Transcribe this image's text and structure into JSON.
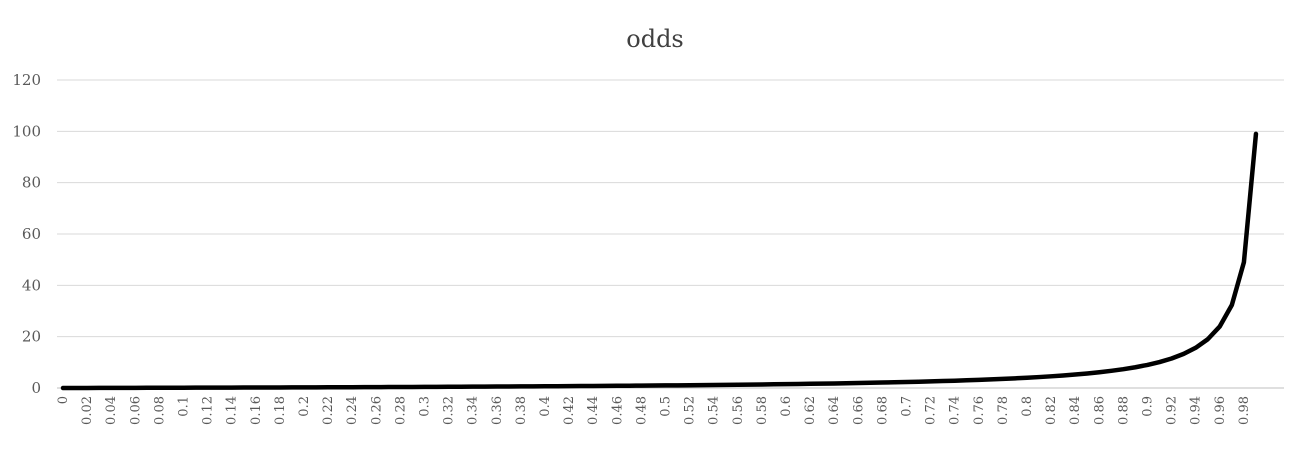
{
  "chart_data": {
    "type": "line",
    "title": "odds",
    "xlabel": "",
    "ylabel": "",
    "ylim": [
      0,
      120
    ],
    "yticks": [
      "0",
      "20",
      "40",
      "60",
      "80",
      "100",
      "120"
    ],
    "grid": true,
    "legend": "none",
    "line_color": "#000000",
    "x": [
      0,
      0.01,
      0.02,
      0.03,
      0.04,
      0.05,
      0.06,
      0.07,
      0.08,
      0.09,
      0.1,
      0.11,
      0.12,
      0.13,
      0.14,
      0.15,
      0.16,
      0.17,
      0.18,
      0.19,
      0.2,
      0.21,
      0.22,
      0.23,
      0.24,
      0.25,
      0.26,
      0.27,
      0.28,
      0.29,
      0.3,
      0.31,
      0.32,
      0.33,
      0.34,
      0.35,
      0.36,
      0.37,
      0.38,
      0.39,
      0.4,
      0.41,
      0.42,
      0.43,
      0.44,
      0.45,
      0.46,
      0.47,
      0.48,
      0.49,
      0.5,
      0.51,
      0.52,
      0.53,
      0.54,
      0.55,
      0.56,
      0.57,
      0.58,
      0.59,
      0.6,
      0.61,
      0.62,
      0.63,
      0.64,
      0.65,
      0.66,
      0.67,
      0.68,
      0.69,
      0.7,
      0.71,
      0.72,
      0.73,
      0.74,
      0.75,
      0.76,
      0.77,
      0.78,
      0.79,
      0.8,
      0.81,
      0.82,
      0.83,
      0.84,
      0.85,
      0.86,
      0.87,
      0.88,
      0.89,
      0.9,
      0.91,
      0.92,
      0.93,
      0.94,
      0.95,
      0.96,
      0.97,
      0.98,
      0.99
    ],
    "xtick_labels": [
      "0",
      "0.02",
      "0.04",
      "0.06",
      "0.08",
      "0.1",
      "0.12",
      "0.14",
      "0.16",
      "0.18",
      "0.2",
      "0.22",
      "0.24",
      "0.26",
      "0.28",
      "0.3",
      "0.32",
      "0.34",
      "0.36",
      "0.38",
      "0.4",
      "0.42",
      "0.44",
      "0.46",
      "0.48",
      "0.5",
      "0.52",
      "0.54",
      "0.56",
      "0.58",
      "0.6",
      "0.62",
      "0.64",
      "0.66",
      "0.68",
      "0.7",
      "0.72",
      "0.74",
      "0.76",
      "0.78",
      "0.8",
      "0.82",
      "0.84",
      "0.86",
      "0.88",
      "0.9",
      "0.92",
      "0.94",
      "0.96",
      "0.98"
    ],
    "series": [
      {
        "values": [
          0,
          0.0101,
          0.0204,
          0.0309,
          0.0417,
          0.0526,
          0.0638,
          0.0753,
          0.087,
          0.0989,
          0.1111,
          0.1236,
          0.1364,
          0.1494,
          0.1628,
          0.1765,
          0.1905,
          0.2048,
          0.2195,
          0.2346,
          0.25,
          0.2658,
          0.2821,
          0.2987,
          0.3158,
          0.3333,
          0.3514,
          0.3699,
          0.3889,
          0.4085,
          0.4286,
          0.4493,
          0.4706,
          0.4925,
          0.5152,
          0.5385,
          0.5625,
          0.5873,
          0.6129,
          0.6393,
          0.6667,
          0.6949,
          0.7241,
          0.7544,
          0.7857,
          0.8182,
          0.8519,
          0.8868,
          0.9231,
          0.9608,
          1,
          1.0408,
          1.0833,
          1.1277,
          1.1739,
          1.2222,
          1.2727,
          1.3256,
          1.381,
          1.439,
          1.5,
          1.5641,
          1.6316,
          1.7027,
          1.7778,
          1.8571,
          1.9412,
          2.0303,
          2.125,
          2.2258,
          2.3333,
          2.4483,
          2.5714,
          2.7037,
          2.8462,
          3,
          3.1667,
          3.3478,
          3.5455,
          3.7619,
          4,
          4.2632,
          4.5556,
          4.8824,
          5.25,
          5.6667,
          6.1429,
          6.6923,
          7.3333,
          8.0909,
          9,
          10.1111,
          11.5,
          13.2857,
          15.6667,
          19,
          24,
          32.3333,
          49,
          99
        ]
      }
    ]
  }
}
